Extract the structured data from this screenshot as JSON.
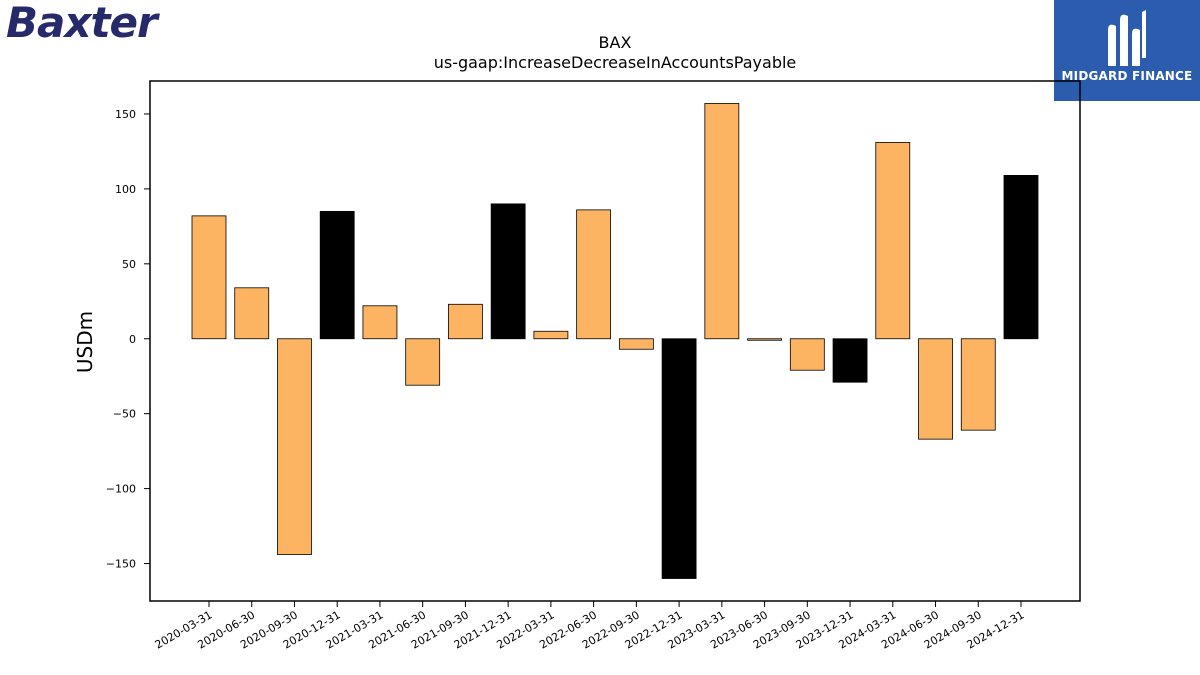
{
  "brand": {
    "company_logo_text": "Baxter",
    "partner_logo_text": "MIDGARD FINANCE"
  },
  "colors": {
    "highlight": "#000000",
    "default": "#fdb462",
    "bar_edge": "#000000",
    "partner_bg": "#2b5cae",
    "brand_text": "#262a6b"
  },
  "chart_data": {
    "type": "bar",
    "title": "BAX",
    "subtitle": "us-gaap:IncreaseDecreaseInAccountsPayable",
    "xlabel": "",
    "ylabel": "USDm",
    "ylim": [
      -175,
      172
    ],
    "yticks": [
      150,
      100,
      50,
      0,
      -50,
      -100,
      -150
    ],
    "ytick_labels": [
      "150",
      "100",
      "50",
      "0",
      "−50",
      "−100",
      "−150"
    ],
    "categories": [
      "2020-03-31",
      "2020-06-30",
      "2020-09-30",
      "2020-12-31",
      "2021-03-31",
      "2021-06-30",
      "2021-09-30",
      "2021-12-31",
      "2022-03-31",
      "2022-06-30",
      "2022-09-30",
      "2022-12-31",
      "2023-03-31",
      "2023-06-30",
      "2023-09-30",
      "2023-12-31",
      "2024-03-31",
      "2024-06-30",
      "2024-09-30",
      "2024-12-31"
    ],
    "values": [
      82,
      34,
      -144,
      85,
      22,
      -31,
      23,
      90,
      5,
      86,
      -7,
      -160,
      157,
      -1,
      -21,
      -29,
      131,
      -67,
      -61,
      109
    ],
    "highlight": [
      false,
      false,
      false,
      true,
      false,
      false,
      false,
      true,
      false,
      false,
      false,
      true,
      false,
      false,
      false,
      true,
      false,
      false,
      false,
      true
    ],
    "grid": false,
    "legend": "none"
  }
}
